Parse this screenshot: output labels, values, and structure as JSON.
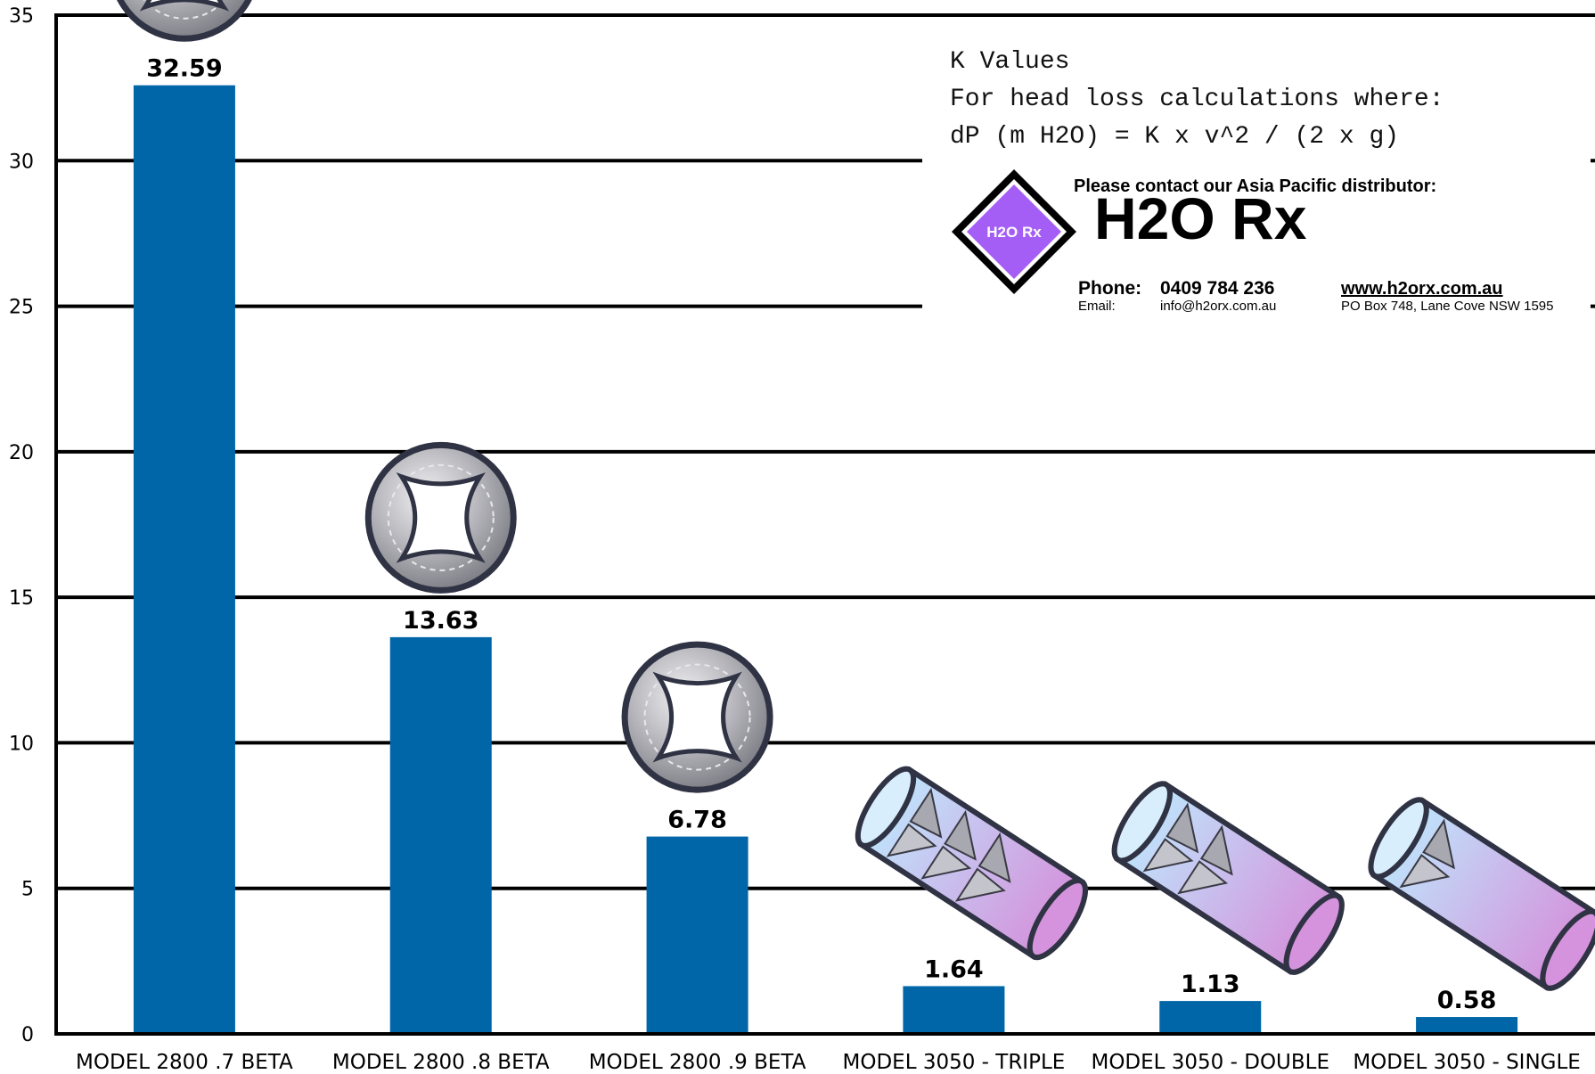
{
  "chart_data": {
    "type": "bar",
    "title": "",
    "xlabel": "",
    "ylabel": "",
    "ylim": [
      0,
      35
    ],
    "yticks": [
      0,
      5,
      10,
      15,
      20,
      25,
      30,
      35
    ],
    "grid": true,
    "categories": [
      "MODEL 2800 .7 BETA",
      "MODEL 2800 .8 BETA",
      "MODEL 2800 .9 BETA",
      "MODEL 3050 - TRIPLE",
      "MODEL 3050 - DOUBLE",
      "MODEL 3050 - SINGLE"
    ],
    "values": [
      32.59,
      13.63,
      6.78,
      1.64,
      1.13,
      0.58
    ],
    "value_labels": [
      "32.59",
      "13.63",
      "6.78",
      "1.64",
      "1.13",
      "0.58"
    ],
    "bar_color": "#0066a8",
    "product_icons": [
      "orifice-plate-icon",
      "orifice-plate-icon",
      "orifice-plate-icon",
      "triple-vane-pipe-icon",
      "double-vane-pipe-icon",
      "single-vane-pipe-icon"
    ],
    "annotation": {
      "lines": [
        "K Values",
        "For head loss calculations where:",
        "dP (m H2O) = K x v^2 / (2 x g)"
      ]
    }
  },
  "logo": {
    "badge_text": "H2O Rx",
    "headline": "Please contact our Asia Pacific distributor:",
    "brand": "H2O Rx",
    "phone_label": "Phone:",
    "phone": "0409 784 236",
    "email_label": "Email:",
    "email": "info@h2orx.com.au",
    "website": "www.h2orx.com.au",
    "address": "PO Box 748, Lane Cove NSW 1595",
    "accent_color": "#a55ef5",
    "link_color": "#7a35c8"
  }
}
